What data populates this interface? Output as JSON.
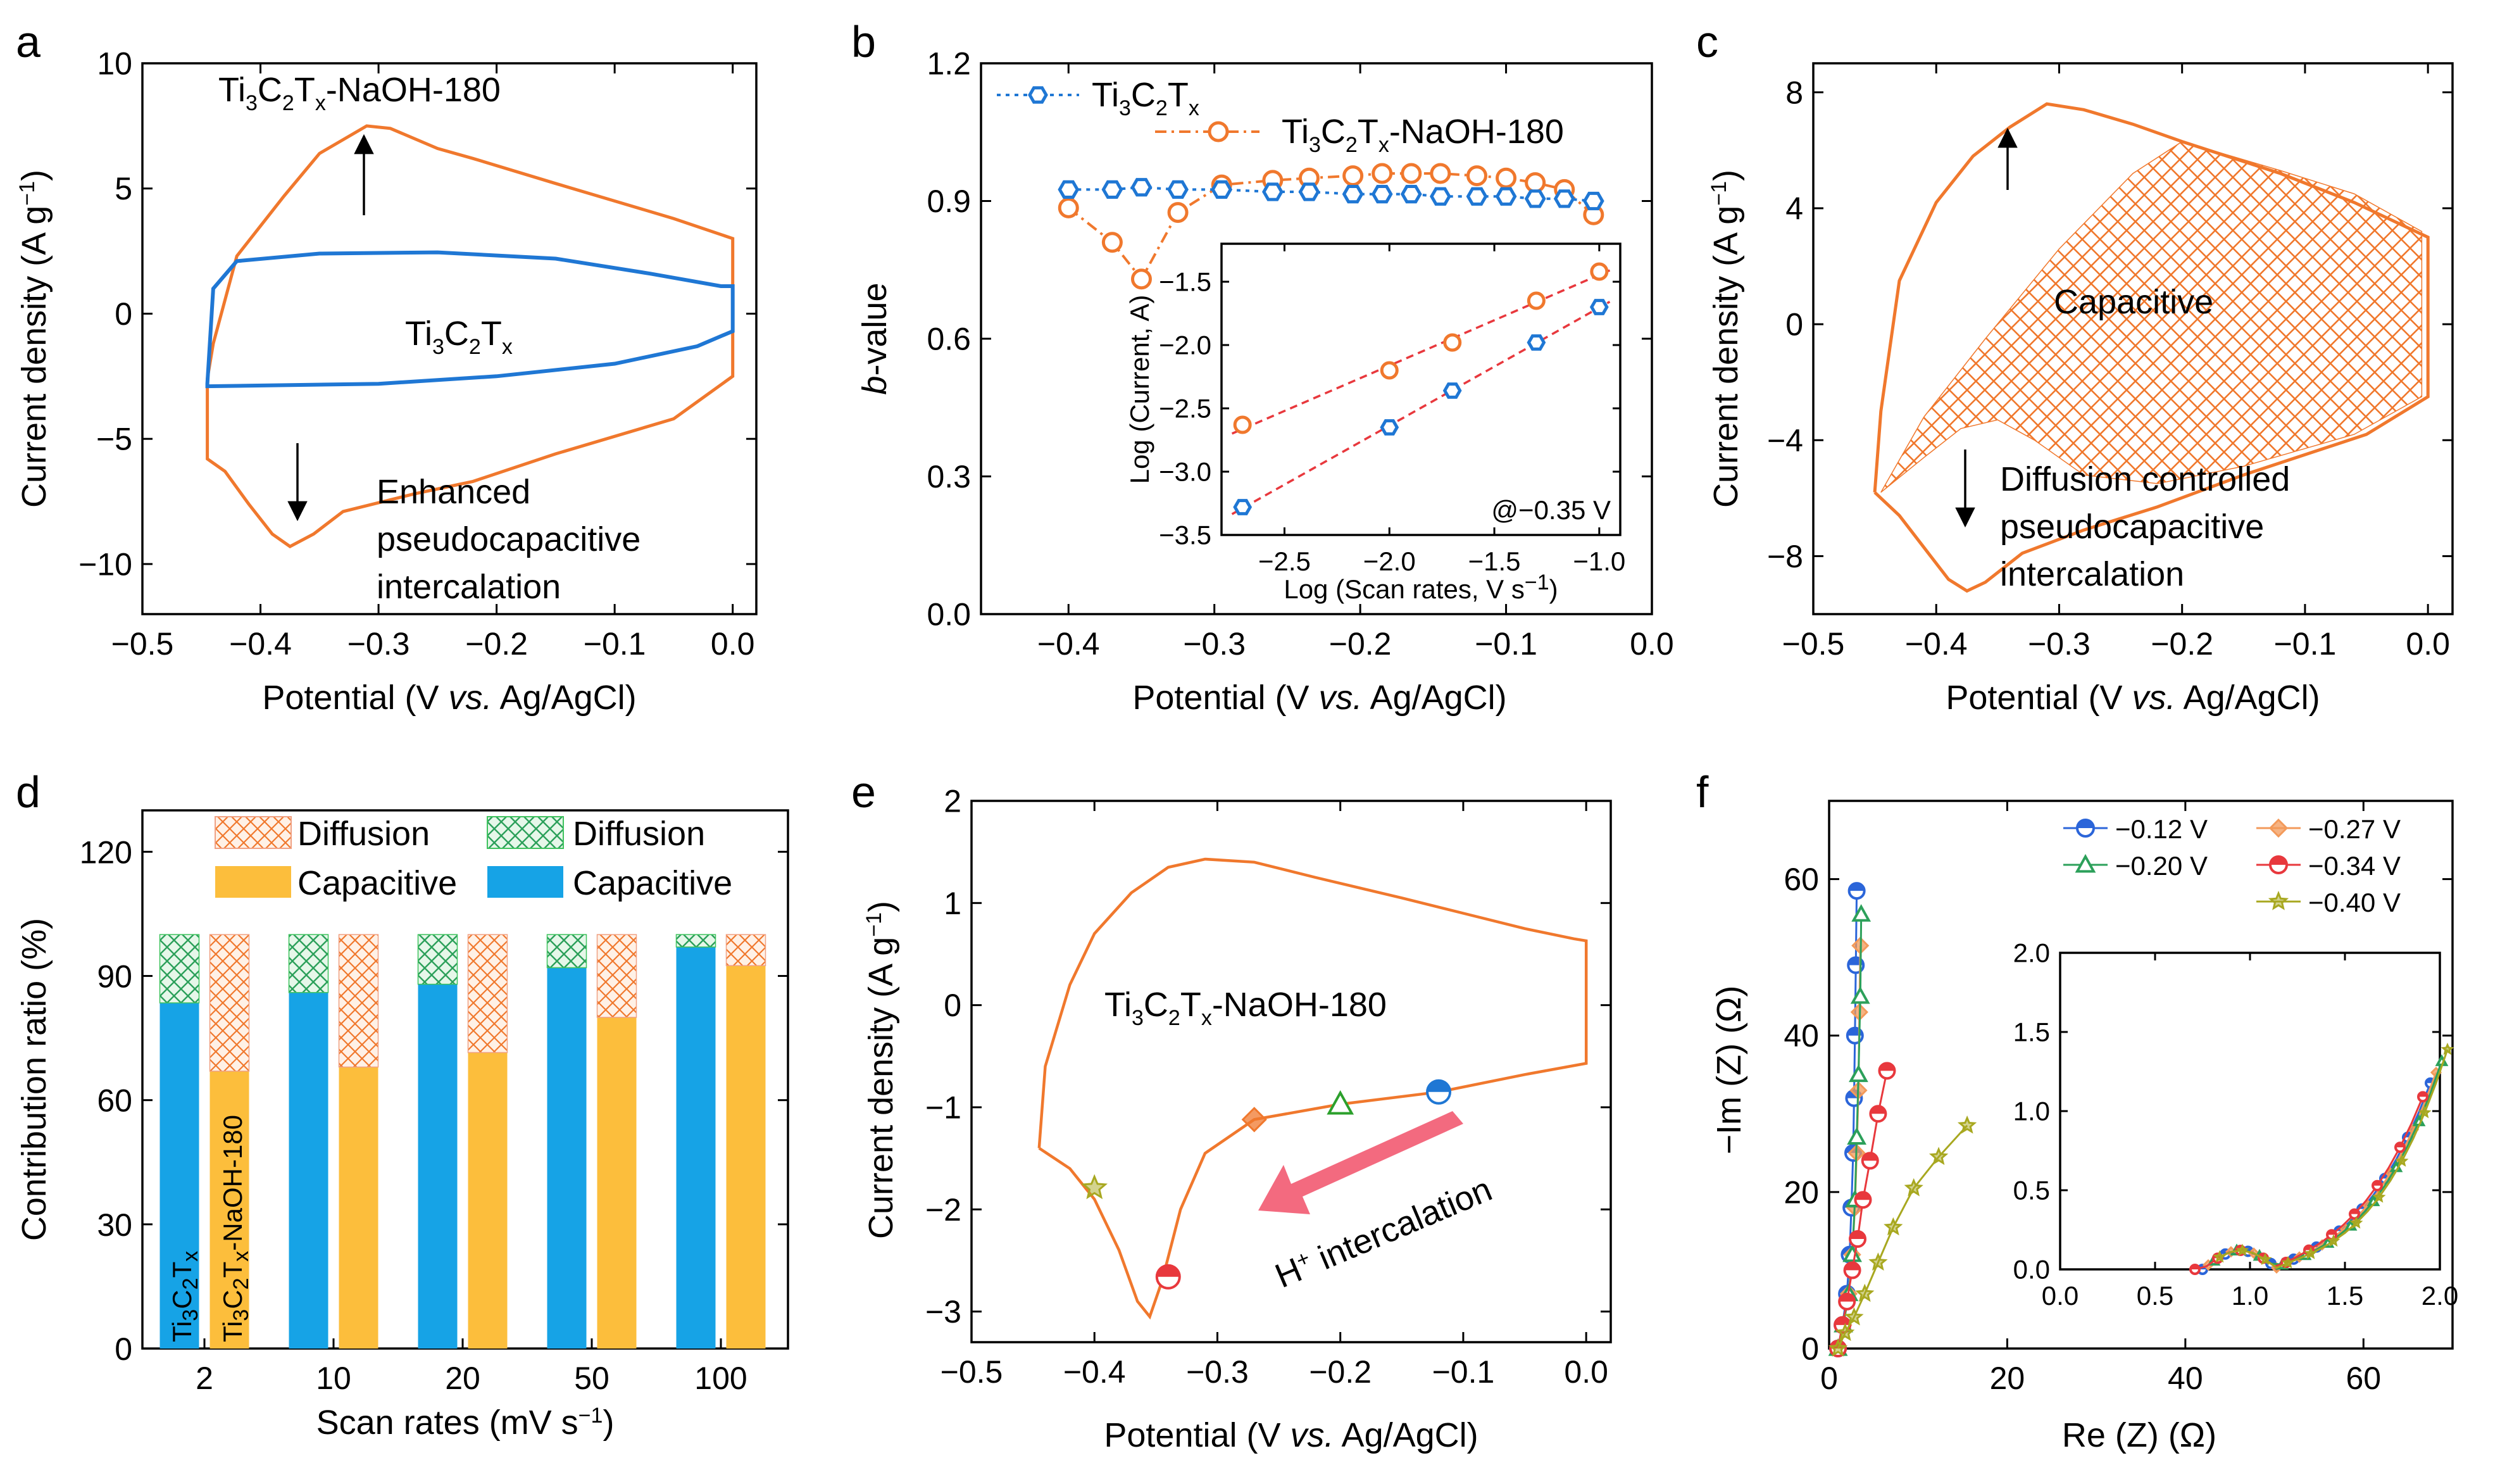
{
  "chart_data": [
    {
      "panel": "a",
      "type": "line",
      "xlabel": "Potential (V vs. Ag/AgCl)",
      "ylabel": "Current density (A g⁻¹)",
      "xlim": [
        -0.5,
        0.02
      ],
      "ylim": [
        -12,
        10
      ],
      "xticks": [
        "−0.5",
        "−0.4",
        "−0.3",
        "−0.2",
        "−0.1",
        "0.0"
      ],
      "yticks": [
        "10",
        "5",
        "0",
        "−5",
        "−10"
      ],
      "series": [
        {
          "name": "Ti3C2Tx-NaOH-180",
          "color": "#f0782d",
          "upper": [
            [
              -0.445,
              -2.6
            ],
            [
              -0.44,
              -1.2
            ],
            [
              -0.42,
              2.3
            ],
            [
              -0.38,
              4.7
            ],
            [
              -0.35,
              6.4
            ],
            [
              -0.31,
              7.5
            ],
            [
              -0.29,
              7.4
            ],
            [
              -0.25,
              6.6
            ],
            [
              -0.22,
              6.2
            ],
            [
              -0.15,
              5.2
            ],
            [
              -0.1,
              4.5
            ],
            [
              -0.05,
              3.8
            ],
            [
              0.0,
              3.0
            ]
          ],
          "lower": [
            [
              0.0,
              3.0
            ],
            [
              0.0,
              -2.5
            ],
            [
              -0.05,
              -4.2
            ],
            [
              -0.15,
              -5.6
            ],
            [
              -0.22,
              -6.7
            ],
            [
              -0.27,
              -7.2
            ],
            [
              -0.33,
              -7.9
            ],
            [
              -0.355,
              -8.8
            ],
            [
              -0.375,
              -9.3
            ],
            [
              -0.39,
              -8.8
            ],
            [
              -0.41,
              -7.6
            ],
            [
              -0.43,
              -6.3
            ],
            [
              -0.445,
              -5.8
            ],
            [
              -0.445,
              -2.6
            ]
          ]
        },
        {
          "name": "Ti3C2Tx",
          "color": "#1f77d4",
          "upper": [
            [
              -0.445,
              -2.8
            ],
            [
              -0.44,
              1.0
            ],
            [
              -0.42,
              2.1
            ],
            [
              -0.35,
              2.4
            ],
            [
              -0.25,
              2.45
            ],
            [
              -0.15,
              2.2
            ],
            [
              -0.07,
              1.6
            ],
            [
              -0.01,
              1.1
            ],
            [
              0.0,
              1.1
            ]
          ],
          "lower": [
            [
              0.0,
              1.1
            ],
            [
              0.0,
              -0.7
            ],
            [
              -0.03,
              -1.3
            ],
            [
              -0.1,
              -2.0
            ],
            [
              -0.2,
              -2.5
            ],
            [
              -0.3,
              -2.8
            ],
            [
              -0.445,
              -2.9
            ]
          ]
        }
      ],
      "annotations": [
        "Ti3C2Tx-NaOH-180",
        "Ti3C2Tx",
        "Enhanced",
        "pseudocapacitive",
        "intercalation"
      ]
    },
    {
      "panel": "b",
      "type": "line",
      "xlabel": "Potential (V vs. Ag/AgCl)",
      "ylabel": "b-value",
      "xlim": [
        -0.46,
        0.0
      ],
      "ylim": [
        0.0,
        1.2
      ],
      "xticks": [
        "−0.4",
        "−0.3",
        "−0.2",
        "−0.1",
        "0.0"
      ],
      "yticks": [
        "1.2",
        "0.9",
        "0.6",
        "0.3",
        "0.0"
      ],
      "series": [
        {
          "name": "Ti3C2Tx",
          "color": "#1f77d4",
          "marker": "hexagon",
          "x": [
            -0.4,
            -0.37,
            -0.35,
            -0.325,
            -0.295,
            -0.26,
            -0.235,
            -0.205,
            -0.185,
            -0.165,
            -0.145,
            -0.12,
            -0.1,
            -0.08,
            -0.06,
            -0.04
          ],
          "y": [
            0.925,
            0.925,
            0.93,
            0.925,
            0.925,
            0.92,
            0.92,
            0.915,
            0.915,
            0.915,
            0.91,
            0.91,
            0.91,
            0.905,
            0.905,
            0.9
          ]
        },
        {
          "name": "Ti3C2Tx-NaOH-180",
          "color": "#f0782d",
          "marker": "circle",
          "x": [
            -0.4,
            -0.37,
            -0.35,
            -0.325,
            -0.295,
            -0.26,
            -0.235,
            -0.205,
            -0.185,
            -0.165,
            -0.145,
            -0.12,
            -0.1,
            -0.08,
            -0.06,
            -0.04
          ],
          "y": [
            0.885,
            0.81,
            0.73,
            0.875,
            0.935,
            0.945,
            0.95,
            0.955,
            0.96,
            0.96,
            0.96,
            0.955,
            0.95,
            0.94,
            0.925,
            0.87
          ]
        }
      ],
      "inset": {
        "xlabel": "Log (Scan rates, V s⁻¹)",
        "ylabel": "Log (Current, A)",
        "xlim": [
          -2.8,
          -0.9
        ],
        "ylim": [
          -3.5,
          -1.2
        ],
        "xticks": [
          "−2.5",
          "−2.0",
          "−1.5",
          "−1.0"
        ],
        "yticks": [
          "−1.5",
          "−2.0",
          "−2.5",
          "−3.0",
          "−3.5"
        ],
        "note": "@−0.35 V",
        "series": [
          {
            "name": "Ti3C2Tx-NaOH-180",
            "color": "#f0782d",
            "marker": "circle",
            "x": [
              -2.7,
              -2.0,
              -1.7,
              -1.3,
              -1.0
            ],
            "y": [
              -2.63,
              -2.2,
              -1.98,
              -1.65,
              -1.42
            ]
          },
          {
            "name": "Ti3C2Tx",
            "color": "#1f77d4",
            "marker": "hexagon",
            "x": [
              -2.7,
              -2.0,
              -1.7,
              -1.3,
              -1.0
            ],
            "y": [
              -3.28,
              -2.65,
              -2.36,
              -1.98,
              -1.7
            ]
          }
        ]
      }
    },
    {
      "panel": "c",
      "type": "area",
      "xlabel": "Potential (V vs. Ag/AgCl)",
      "ylabel": "Current density (A g⁻¹)",
      "xlim": [
        -0.5,
        0.02
      ],
      "ylim": [
        -10,
        9
      ],
      "xticks": [
        "−0.5",
        "−0.4",
        "−0.3",
        "−0.2",
        "−0.1",
        "0.0"
      ],
      "yticks": [
        "8",
        "4",
        "0",
        "−4",
        "−8"
      ],
      "annotations": [
        "Capacitive",
        "Diffusion controlled",
        "pseudocapacitive",
        "intercalation"
      ]
    },
    {
      "panel": "d",
      "type": "bar",
      "xlabel": "Scan rates (mV s⁻¹)",
      "ylabel": "Contribution ratio (%)",
      "ylim": [
        0,
        130
      ],
      "yticks": [
        "0",
        "30",
        "60",
        "90",
        "120"
      ],
      "categories": [
        "2",
        "10",
        "20",
        "50",
        "100"
      ],
      "series": [
        {
          "name": "Ti3C2Tx Capacitive",
          "color": "#16a3e6",
          "values": [
            83.5,
            86,
            88,
            92,
            97
          ]
        },
        {
          "name": "Ti3C2Tx Diffusion",
          "color": "#3fc35e",
          "values": [
            16.5,
            14,
            12,
            8,
            3
          ]
        },
        {
          "name": "Ti3C2Tx-NaOH-180 Capacitive",
          "color": "#fcbe3c",
          "values": [
            67,
            68,
            71.5,
            80,
            92.5
          ]
        },
        {
          "name": "Ti3C2Tx-NaOH-180 Diffusion",
          "color": "#f0a184",
          "values": [
            33,
            32,
            28.5,
            20,
            7.5
          ]
        }
      ],
      "legend": [
        "Diffusion",
        "Diffusion",
        "Capacitive",
        "Capacitive"
      ],
      "bar_labels": [
        "Ti3C2Tx",
        "Ti3C2Tx-NaOH-180"
      ]
    },
    {
      "panel": "e",
      "type": "line",
      "xlabel": "Potential (V vs. Ag/AgCl)",
      "ylabel": "Current density (A g⁻¹)",
      "xlim": [
        -0.5,
        0.02
      ],
      "ylim": [
        -3.3,
        2.0
      ],
      "xticks": [
        "−0.5",
        "−0.4",
        "−0.3",
        "−0.2",
        "−0.1",
        "0.0"
      ],
      "yticks": [
        "2",
        "1",
        "0",
        "−1",
        "−2",
        "−3"
      ],
      "annotations": [
        "Ti3C2Tx-NaOH-180",
        "H⁺ intercalation"
      ],
      "markers": [
        {
          "potential": -0.12,
          "current": -0.85,
          "shape": "half-circle",
          "color": "#1f77d4"
        },
        {
          "potential": -0.2,
          "current": -0.97,
          "shape": "triangle",
          "color": "#2ca02c"
        },
        {
          "potential": -0.27,
          "current": -1.12,
          "shape": "diamond",
          "color": "#f0782d"
        },
        {
          "potential": -0.34,
          "current": -2.66,
          "shape": "half-circle",
          "color": "#e8383d"
        },
        {
          "potential": -0.4,
          "current": -1.79,
          "shape": "star",
          "color": "#a8a820"
        }
      ]
    },
    {
      "panel": "f",
      "type": "scatter",
      "xlabel": "Re (Z) (Ω)",
      "ylabel": "−Im (Z) (Ω)",
      "xlim": [
        0,
        70
      ],
      "ylim": [
        0,
        70
      ],
      "xticks": [
        "0",
        "20",
        "40",
        "60"
      ],
      "yticks": [
        "60",
        "40",
        "20",
        "0"
      ],
      "series": [
        {
          "name": "−0.12 V",
          "color": "#2b65d9",
          "marker": "half-circle",
          "x": [
            1.0,
            1.5,
            2.0,
            2.3,
            2.5,
            2.7,
            2.8,
            2.9,
            3.0,
            3.1
          ],
          "y": [
            0,
            3,
            7,
            12,
            18,
            25,
            32,
            40,
            49,
            58.5
          ]
        },
        {
          "name": "−0.27 V",
          "color": "#f39a5a",
          "marker": "diamond",
          "x": [
            1.0,
            1.6,
            2.2,
            2.6,
            2.9,
            3.1,
            3.3,
            3.4,
            3.5
          ],
          "y": [
            0,
            3,
            7,
            12,
            18,
            25,
            33,
            43,
            51.5
          ]
        },
        {
          "name": "−0.20 V",
          "color": "#2ca05a",
          "marker": "triangle",
          "x": [
            1.0,
            1.6,
            2.2,
            2.6,
            2.9,
            3.1,
            3.3,
            3.5,
            3.6
          ],
          "y": [
            0,
            3,
            7,
            12,
            19,
            27,
            35,
            45,
            55.5
          ]
        },
        {
          "name": "−0.34 V",
          "color": "#e8383d",
          "marker": "half-circle",
          "x": [
            1.0,
            1.5,
            2.0,
            2.6,
            3.2,
            3.8,
            4.6,
            5.5,
            6.5
          ],
          "y": [
            0,
            3,
            6,
            10,
            14,
            19,
            24,
            30,
            35.5
          ]
        },
        {
          "name": "−0.40 V",
          "color": "#a8a820",
          "marker": "star",
          "x": [
            1.0,
            1.8,
            2.8,
            4.0,
            5.5,
            7.2,
            9.5,
            12.3,
            15.5
          ],
          "y": [
            0,
            2,
            4,
            7,
            11,
            15.5,
            20.5,
            24.5,
            28.5
          ]
        }
      ],
      "inset": {
        "xlim": [
          0.0,
          2.0
        ],
        "ylim": [
          0.0,
          2.0
        ],
        "xticks": [
          "0.0",
          "0.5",
          "1.0",
          "1.5",
          "2.0"
        ],
        "yticks": [
          "2.0",
          "1.5",
          "1.0",
          "0.5",
          "0.0"
        ]
      }
    }
  ]
}
